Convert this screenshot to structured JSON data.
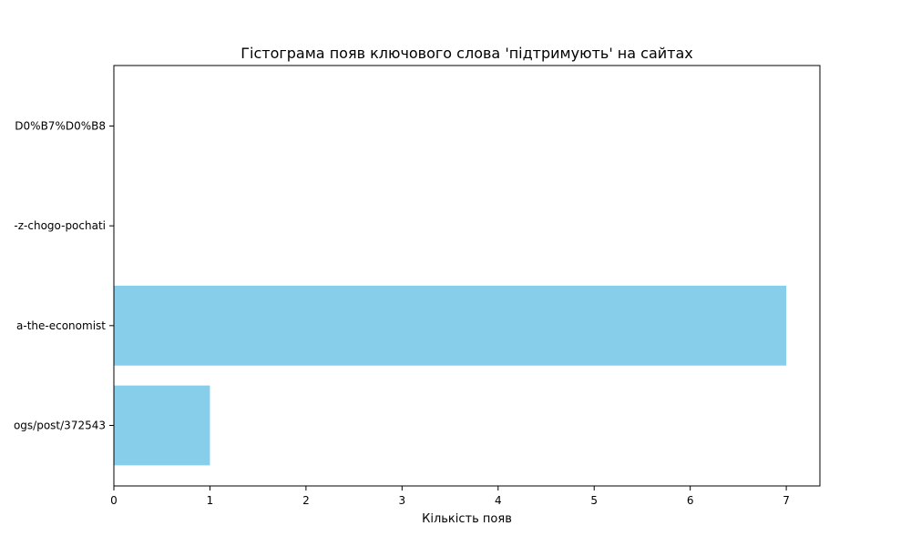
{
  "chart_data": {
    "type": "bar",
    "orientation": "horizontal",
    "title": "Гістограма появ ключового слова 'підтримують' на сайтах",
    "xlabel": "Кількість появ",
    "ylabel": "",
    "categories": [
      "ogs/post/372543",
      "a-the-economist",
      "-z-chogo-pochati",
      "D0%B7%D0%B8"
    ],
    "values": [
      1,
      7,
      0,
      0
    ],
    "xlim": [
      0,
      7.35
    ],
    "xticks": [
      0,
      1,
      2,
      3,
      4,
      5,
      6,
      7
    ],
    "bar_color": "#87ceeb",
    "grid": false,
    "legend": "none"
  }
}
